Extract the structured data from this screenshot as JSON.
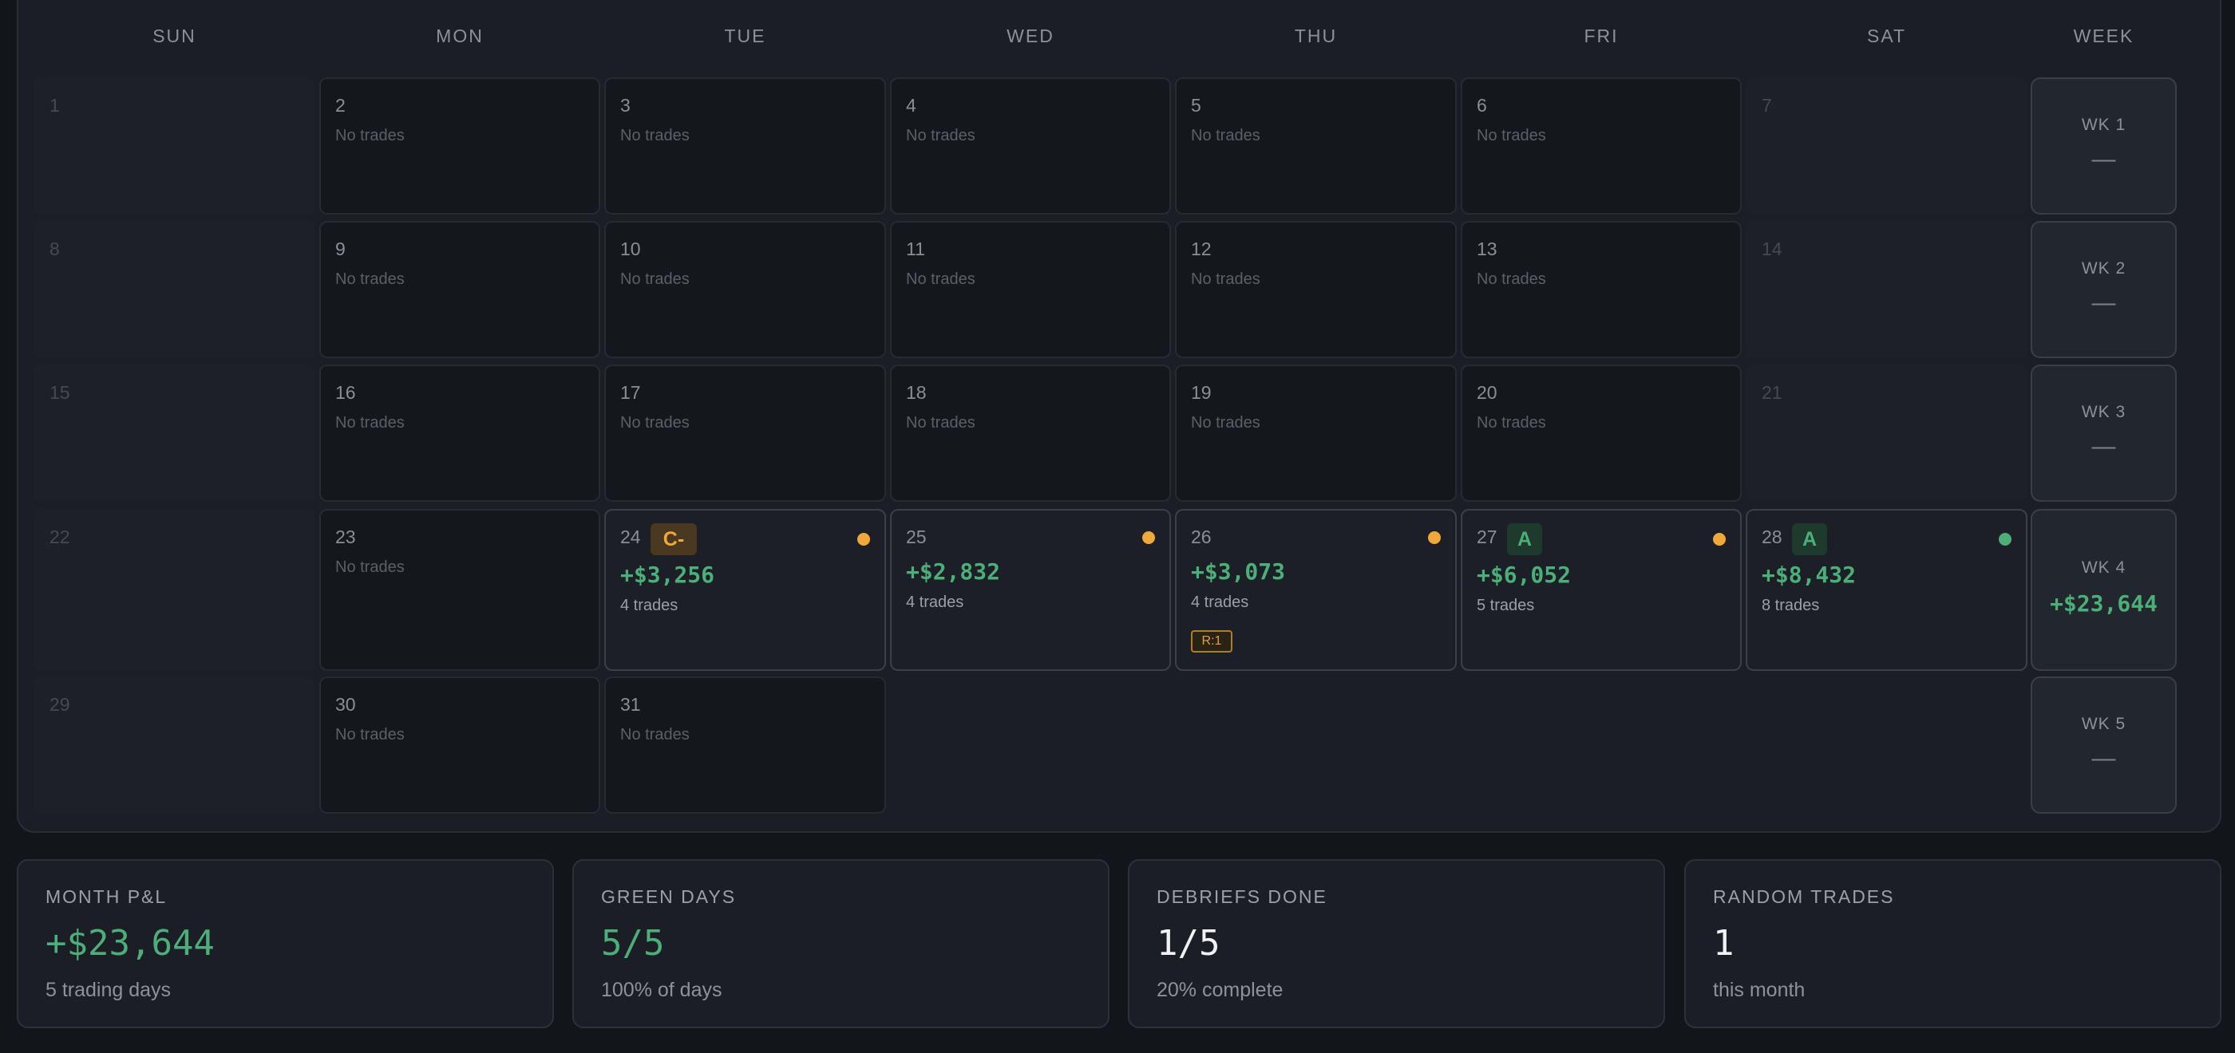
{
  "calendar": {
    "days_of_week": [
      "SUN",
      "MON",
      "TUE",
      "WED",
      "THU",
      "FRI",
      "SAT",
      "WEEK"
    ],
    "no_trades_label": "No trades",
    "weeks": [
      {
        "days": [
          {
            "num": "1",
            "weekend": true
          },
          {
            "num": "2",
            "text": "No trades"
          },
          {
            "num": "3",
            "text": "No trades"
          },
          {
            "num": "4",
            "text": "No trades"
          },
          {
            "num": "5",
            "text": "No trades"
          },
          {
            "num": "6",
            "text": "No trades"
          },
          {
            "num": "7",
            "weekend": true
          }
        ],
        "week_label": "WK 1",
        "week_value": "—"
      },
      {
        "days": [
          {
            "num": "8",
            "weekend": true
          },
          {
            "num": "9",
            "text": "No trades"
          },
          {
            "num": "10",
            "text": "No trades"
          },
          {
            "num": "11",
            "text": "No trades"
          },
          {
            "num": "12",
            "text": "No trades"
          },
          {
            "num": "13",
            "text": "No trades"
          },
          {
            "num": "14",
            "weekend": true
          }
        ],
        "week_label": "WK 2",
        "week_value": "—"
      },
      {
        "days": [
          {
            "num": "15",
            "weekend": true
          },
          {
            "num": "16",
            "text": "No trades"
          },
          {
            "num": "17",
            "text": "No trades"
          },
          {
            "num": "18",
            "text": "No trades"
          },
          {
            "num": "19",
            "text": "No trades"
          },
          {
            "num": "20",
            "text": "No trades"
          },
          {
            "num": "21",
            "weekend": true
          }
        ],
        "week_label": "WK 3",
        "week_value": "—"
      },
      {
        "days": [
          {
            "num": "22",
            "weekend": true
          },
          {
            "num": "23",
            "text": "No trades"
          },
          {
            "num": "24",
            "grade": "C-",
            "pnl": "+$3,256",
            "trades": "4 trades",
            "dot": "orange"
          },
          {
            "num": "25",
            "pnl": "+$2,832",
            "trades": "4 trades",
            "dot": "orange"
          },
          {
            "num": "26",
            "pnl": "+$3,073",
            "trades": "4 trades",
            "dot": "orange",
            "tag": "R:1"
          },
          {
            "num": "27",
            "grade": "A",
            "pnl": "+$6,052",
            "trades": "5 trades",
            "dot": "orange"
          },
          {
            "num": "28",
            "grade": "A",
            "pnl": "+$8,432",
            "trades": "8 trades",
            "dot": "green"
          }
        ],
        "week_label": "WK 4",
        "week_value": "+$23,644"
      },
      {
        "days": [
          {
            "num": "29",
            "weekend": true
          },
          {
            "num": "30",
            "text": "No trades"
          },
          {
            "num": "31",
            "text": "No trades"
          }
        ],
        "week_label": "WK 5",
        "week_value": "—"
      }
    ]
  },
  "stats": [
    {
      "label": "MONTH P&L",
      "value": "+$23,644",
      "sub": "5 trading days",
      "tone": "green"
    },
    {
      "label": "GREEN DAYS",
      "value": "5/5",
      "sub": "100% of days",
      "tone": "green"
    },
    {
      "label": "DEBRIEFS DONE",
      "value": "1/5",
      "sub": "20% complete",
      "tone": "white"
    },
    {
      "label": "RANDOM TRADES",
      "value": "1",
      "sub": "this month",
      "tone": "white"
    }
  ],
  "colors": {
    "positive": "#4caf7a",
    "warning": "#f0a83a",
    "panel": "#1b1e25",
    "background": "#121519"
  }
}
